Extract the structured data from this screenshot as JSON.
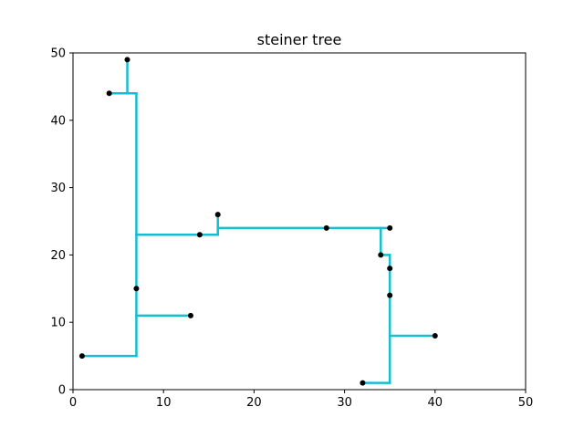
{
  "chart_data": {
    "type": "scatter",
    "title": "steiner tree",
    "xlabel": "",
    "ylabel": "",
    "xlim": [
      0,
      50
    ],
    "ylim": [
      0,
      50
    ],
    "x_ticks": [
      0,
      10,
      20,
      30,
      40,
      50
    ],
    "y_ticks": [
      0,
      10,
      20,
      30,
      40,
      50
    ],
    "grid": false,
    "point_color": "#000000",
    "edge_color": "#17becf",
    "points": [
      {
        "x": 6,
        "y": 49
      },
      {
        "x": 4,
        "y": 44
      },
      {
        "x": 16,
        "y": 26
      },
      {
        "x": 14,
        "y": 23
      },
      {
        "x": 28,
        "y": 24
      },
      {
        "x": 35,
        "y": 24
      },
      {
        "x": 34,
        "y": 20
      },
      {
        "x": 35,
        "y": 18
      },
      {
        "x": 7,
        "y": 15
      },
      {
        "x": 35,
        "y": 14
      },
      {
        "x": 13,
        "y": 11
      },
      {
        "x": 40,
        "y": 8
      },
      {
        "x": 1,
        "y": 5
      },
      {
        "x": 32,
        "y": 1
      }
    ],
    "tree_edges": [
      [
        [
          6,
          49
        ],
        [
          6,
          44
        ]
      ],
      [
        [
          4,
          44
        ],
        [
          7,
          44
        ]
      ],
      [
        [
          7,
          44
        ],
        [
          7,
          5
        ]
      ],
      [
        [
          1,
          5
        ],
        [
          7,
          5
        ]
      ],
      [
        [
          7,
          11
        ],
        [
          13,
          11
        ]
      ],
      [
        [
          7,
          23
        ],
        [
          16,
          23
        ]
      ],
      [
        [
          16,
          26
        ],
        [
          16,
          23
        ]
      ],
      [
        [
          16,
          24
        ],
        [
          35,
          24
        ]
      ],
      [
        [
          34,
          24
        ],
        [
          34,
          20
        ]
      ],
      [
        [
          34,
          20
        ],
        [
          35,
          20
        ]
      ],
      [
        [
          35,
          20
        ],
        [
          35,
          1
        ]
      ],
      [
        [
          32,
          1
        ],
        [
          35,
          1
        ]
      ],
      [
        [
          35,
          8
        ],
        [
          40,
          8
        ]
      ]
    ]
  }
}
